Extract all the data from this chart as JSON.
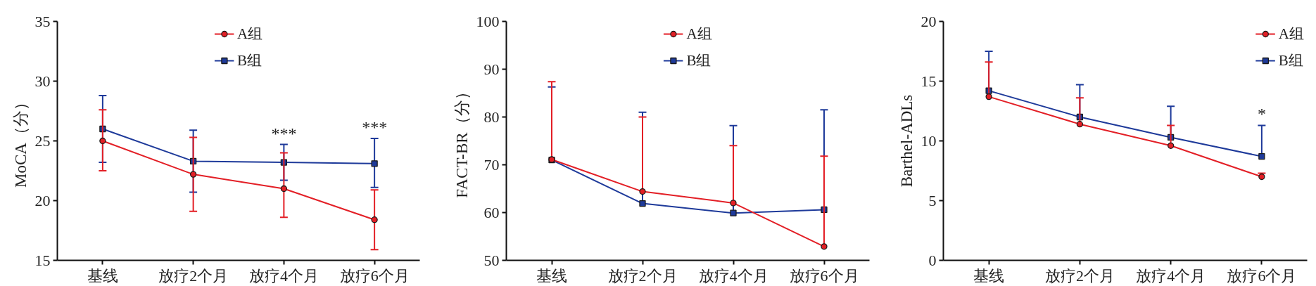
{
  "chart_data": [
    {
      "type": "line",
      "ylabel": "MoCA（分）",
      "categories": [
        "基线",
        "放疗2个月",
        "放疗4个月",
        "放疗6个月"
      ],
      "ylim": [
        15,
        35
      ],
      "yticks": [
        15,
        20,
        25,
        30,
        35
      ],
      "grid": false,
      "legend": "top",
      "series": [
        {
          "name": "A组",
          "color": "#e31f26",
          "marker": "circle",
          "values": [
            25.0,
            22.2,
            21.0,
            18.4
          ],
          "errors": [
            [
              22.5,
              27.6
            ],
            [
              19.1,
              25.3
            ],
            [
              18.6,
              24.0
            ],
            [
              15.9,
              20.9
            ]
          ]
        },
        {
          "name": "B组",
          "color": "#1e3a9a",
          "marker": "square",
          "values": [
            26.0,
            23.3,
            23.2,
            23.1
          ],
          "errors": [
            [
              23.2,
              28.8
            ],
            [
              20.7,
              25.9
            ],
            [
              21.7,
              24.7
            ],
            [
              21.1,
              25.2
            ]
          ]
        }
      ],
      "annotations": [
        {
          "text": "***",
          "x": "放疗4个月",
          "y": 23.2
        },
        {
          "text": "***",
          "x": "放疗6个月",
          "y": 23.1
        }
      ]
    },
    {
      "type": "line",
      "ylabel": "FACT-BR（分）",
      "categories": [
        "基线",
        "放疗2个月",
        "放疗4个月",
        "放疗6个月"
      ],
      "ylim": [
        50,
        100
      ],
      "yticks": [
        50,
        60,
        70,
        80,
        90,
        100
      ],
      "grid": false,
      "legend": "top",
      "series": [
        {
          "name": "A组",
          "color": "#e31f26",
          "marker": "circle",
          "values": [
            71.1,
            64.4,
            62.0,
            52.9
          ],
          "errors": [
            [
              71.1,
              87.4
            ],
            [
              64.4,
              80.0
            ],
            [
              62.0,
              74.0
            ],
            [
              52.9,
              71.8
            ]
          ]
        },
        {
          "name": "B组",
          "color": "#1e3a9a",
          "marker": "square",
          "values": [
            71.0,
            61.9,
            59.9,
            60.6
          ],
          "errors": [
            [
              71.0,
              86.3
            ],
            [
              61.9,
              81.0
            ],
            [
              59.9,
              78.2
            ],
            [
              60.6,
              81.5
            ]
          ]
        }
      ]
    },
    {
      "type": "line",
      "ylabel": "Barthel-ADLs",
      "categories": [
        "基线",
        "放疗2个月",
        "放疗4个月",
        "放疗6个月"
      ],
      "ylim": [
        0,
        20
      ],
      "yticks": [
        0,
        5,
        10,
        15,
        20
      ],
      "grid": false,
      "legend": "top right",
      "series": [
        {
          "name": "A组",
          "color": "#e31f26",
          "marker": "circle",
          "values": [
            13.7,
            11.4,
            9.6,
            7.0
          ],
          "errors": [
            [
              13.7,
              16.6
            ],
            [
              11.4,
              13.6
            ],
            [
              9.6,
              11.3
            ],
            [
              7.0,
              7.3
            ]
          ]
        },
        {
          "name": "B组",
          "color": "#1e3a9a",
          "marker": "square",
          "values": [
            14.2,
            12.0,
            10.3,
            8.7
          ],
          "errors": [
            [
              14.2,
              17.5
            ],
            [
              12.0,
              14.7
            ],
            [
              10.3,
              12.9
            ],
            [
              8.7,
              11.3
            ]
          ]
        }
      ],
      "annotations": [
        {
          "text": "*",
          "x": "放疗6个月",
          "y": 8.7
        }
      ]
    }
  ]
}
